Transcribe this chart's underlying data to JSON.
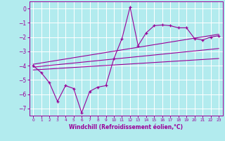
{
  "background_color": "#b2ebee",
  "grid_color": "#ffffff",
  "line_color": "#990099",
  "xlim": [
    -0.5,
    23.5
  ],
  "ylim": [
    -7.5,
    0.5
  ],
  "yticks": [
    0,
    -1,
    -2,
    -3,
    -4,
    -5,
    -6,
    -7
  ],
  "xticks": [
    0,
    1,
    2,
    3,
    4,
    5,
    6,
    7,
    8,
    9,
    10,
    11,
    12,
    13,
    14,
    15,
    16,
    17,
    18,
    19,
    20,
    21,
    22,
    23
  ],
  "xlabel": "Windchill (Refroidissement éolien,°C)",
  "scatter_x": [
    0,
    1,
    2,
    3,
    4,
    5,
    6,
    7,
    8,
    9,
    10,
    11,
    12,
    13,
    14,
    15,
    16,
    17,
    18,
    19,
    20,
    21,
    22,
    23
  ],
  "scatter_y": [
    -4.0,
    -4.5,
    -5.2,
    -6.5,
    -5.4,
    -5.6,
    -7.3,
    -5.8,
    -5.5,
    -5.4,
    -3.5,
    -2.1,
    0.1,
    -2.6,
    -1.7,
    -1.2,
    -1.15,
    -1.2,
    -1.35,
    -1.35,
    -2.1,
    -2.2,
    -2.0,
    -1.9
  ],
  "line1_x": [
    0,
    23
  ],
  "line1_y": [
    -3.9,
    -1.8
  ],
  "line2_x": [
    0,
    23
  ],
  "line2_y": [
    -4.1,
    -2.8
  ],
  "line3_x": [
    0,
    23
  ],
  "line3_y": [
    -4.3,
    -3.5
  ]
}
